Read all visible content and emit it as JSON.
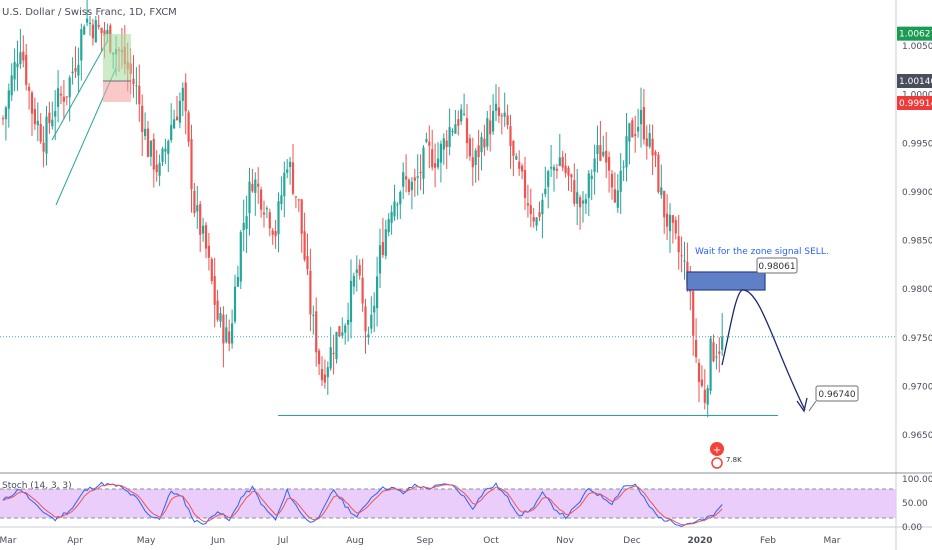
{
  "header": {
    "title": "U.S. Dollar / Swiss Franc, 1D, FXCM"
  },
  "chart_data": {
    "type": "candlestick",
    "title": "U.S. Dollar / Swiss Franc, 1D, FXCM",
    "y_ticks": [
      "1.00500",
      "1.00000",
      "0.99500",
      "0.99000",
      "0.98500",
      "0.98000",
      "0.97500",
      "0.97000",
      "0.96500"
    ],
    "x_ticks": [
      "Mar",
      "Apr",
      "May",
      "Jun",
      "Jul",
      "Aug",
      "Sep",
      "Oct",
      "Nov",
      "Dec",
      "2020",
      "Feb",
      "Mar"
    ],
    "ylim": [
      0.96,
      1.008
    ],
    "price_badges": [
      {
        "label": "1.00627",
        "value": 1.00627,
        "color": "#1a9a52"
      },
      {
        "label": "1.00140",
        "value": 1.0014,
        "color": "#4a4e5c"
      },
      {
        "label": "0.99914",
        "value": 0.99914,
        "color": "#ef3a3a"
      }
    ],
    "annotations": {
      "zone_note": "Wait for the zone signal SELL.",
      "zone_price": "0.98061",
      "target_price": "0.96740",
      "horizontal_line": 0.9751,
      "support_line": 0.967,
      "icon_count": "7.8K"
    },
    "candle_keypoints": [
      [
        0,
        0.9975
      ],
      [
        6,
        1.0055
      ],
      [
        10,
        0.9985
      ],
      [
        14,
        0.9955
      ],
      [
        18,
        0.999
      ],
      [
        22,
        1.0005
      ],
      [
        26,
        1.0045
      ],
      [
        28,
        1.008
      ],
      [
        32,
        1.0068
      ],
      [
        36,
        1.006
      ],
      [
        40,
        1.0045
      ],
      [
        44,
        1.002
      ],
      [
        46,
        1.0005
      ],
      [
        50,
        0.9945
      ],
      [
        54,
        0.992
      ],
      [
        58,
        0.997
      ],
      [
        62,
        1.0
      ],
      [
        66,
        0.9885
      ],
      [
        70,
        0.984
      ],
      [
        74,
        0.977
      ],
      [
        78,
        0.9745
      ],
      [
        82,
        0.9855
      ],
      [
        86,
        0.9915
      ],
      [
        90,
        0.989
      ],
      [
        94,
        0.986
      ],
      [
        98,
        0.9935
      ],
      [
        102,
        0.9885
      ],
      [
        106,
        0.978
      ],
      [
        110,
        0.971
      ],
      [
        114,
        0.9745
      ],
      [
        118,
        0.977
      ],
      [
        122,
        0.982
      ],
      [
        126,
        0.974
      ],
      [
        130,
        0.9835
      ],
      [
        134,
        0.989
      ],
      [
        138,
        0.991
      ],
      [
        142,
        0.9905
      ],
      [
        146,
        0.994
      ],
      [
        150,
        0.9935
      ],
      [
        154,
        0.9965
      ],
      [
        158,
        0.998
      ],
      [
        162,
        0.9925
      ],
      [
        166,
        0.996
      ],
      [
        170,
        0.998
      ],
      [
        174,
        0.9965
      ],
      [
        176,
        0.993
      ],
      [
        180,
        0.99
      ],
      [
        184,
        0.987
      ],
      [
        188,
        0.9915
      ],
      [
        192,
        0.9935
      ],
      [
        196,
        0.9905
      ],
      [
        200,
        0.988
      ],
      [
        204,
        0.9935
      ],
      [
        208,
        0.9945
      ],
      [
        212,
        0.989
      ],
      [
        216,
        0.996
      ],
      [
        220,
        0.9975
      ],
      [
        224,
        0.994
      ],
      [
        228,
        0.988
      ],
      [
        232,
        0.9845
      ],
      [
        236,
        0.9815
      ],
      [
        238,
        0.9755
      ],
      [
        240,
        0.9705
      ],
      [
        242,
        0.969
      ],
      [
        244,
        0.9735
      ],
      [
        248,
        0.9745
      ]
    ],
    "stochastic": {
      "label": "Stoch (14, 3, 3)",
      "ylim": [
        0,
        100
      ],
      "ticks": [
        "100.00",
        "50.00",
        "0.00"
      ],
      "bands": [
        20,
        80
      ],
      "k_keypoints": [
        [
          0,
          55
        ],
        [
          6,
          80
        ],
        [
          12,
          40
        ],
        [
          18,
          15
        ],
        [
          24,
          40
        ],
        [
          28,
          75
        ],
        [
          34,
          90
        ],
        [
          40,
          85
        ],
        [
          46,
          60
        ],
        [
          50,
          25
        ],
        [
          54,
          18
        ],
        [
          58,
          75
        ],
        [
          62,
          60
        ],
        [
          66,
          12
        ],
        [
          70,
          8
        ],
        [
          74,
          35
        ],
        [
          78,
          12
        ],
        [
          82,
          60
        ],
        [
          86,
          82
        ],
        [
          90,
          40
        ],
        [
          94,
          15
        ],
        [
          98,
          75
        ],
        [
          102,
          35
        ],
        [
          106,
          8
        ],
        [
          110,
          30
        ],
        [
          114,
          78
        ],
        [
          118,
          45
        ],
        [
          122,
          20
        ],
        [
          126,
          55
        ],
        [
          130,
          80
        ],
        [
          134,
          82
        ],
        [
          138,
          70
        ],
        [
          142,
          88
        ],
        [
          146,
          80
        ],
        [
          150,
          85
        ],
        [
          154,
          90
        ],
        [
          158,
          70
        ],
        [
          162,
          40
        ],
        [
          166,
          75
        ],
        [
          170,
          88
        ],
        [
          174,
          60
        ],
        [
          178,
          25
        ],
        [
          182,
          35
        ],
        [
          186,
          70
        ],
        [
          190,
          40
        ],
        [
          194,
          20
        ],
        [
          198,
          45
        ],
        [
          202,
          80
        ],
        [
          206,
          65
        ],
        [
          210,
          50
        ],
        [
          214,
          85
        ],
        [
          218,
          88
        ],
        [
          222,
          50
        ],
        [
          226,
          20
        ],
        [
          230,
          12
        ],
        [
          234,
          5
        ],
        [
          238,
          10
        ],
        [
          242,
          15
        ],
        [
          246,
          30
        ],
        [
          248,
          45
        ]
      ]
    }
  }
}
